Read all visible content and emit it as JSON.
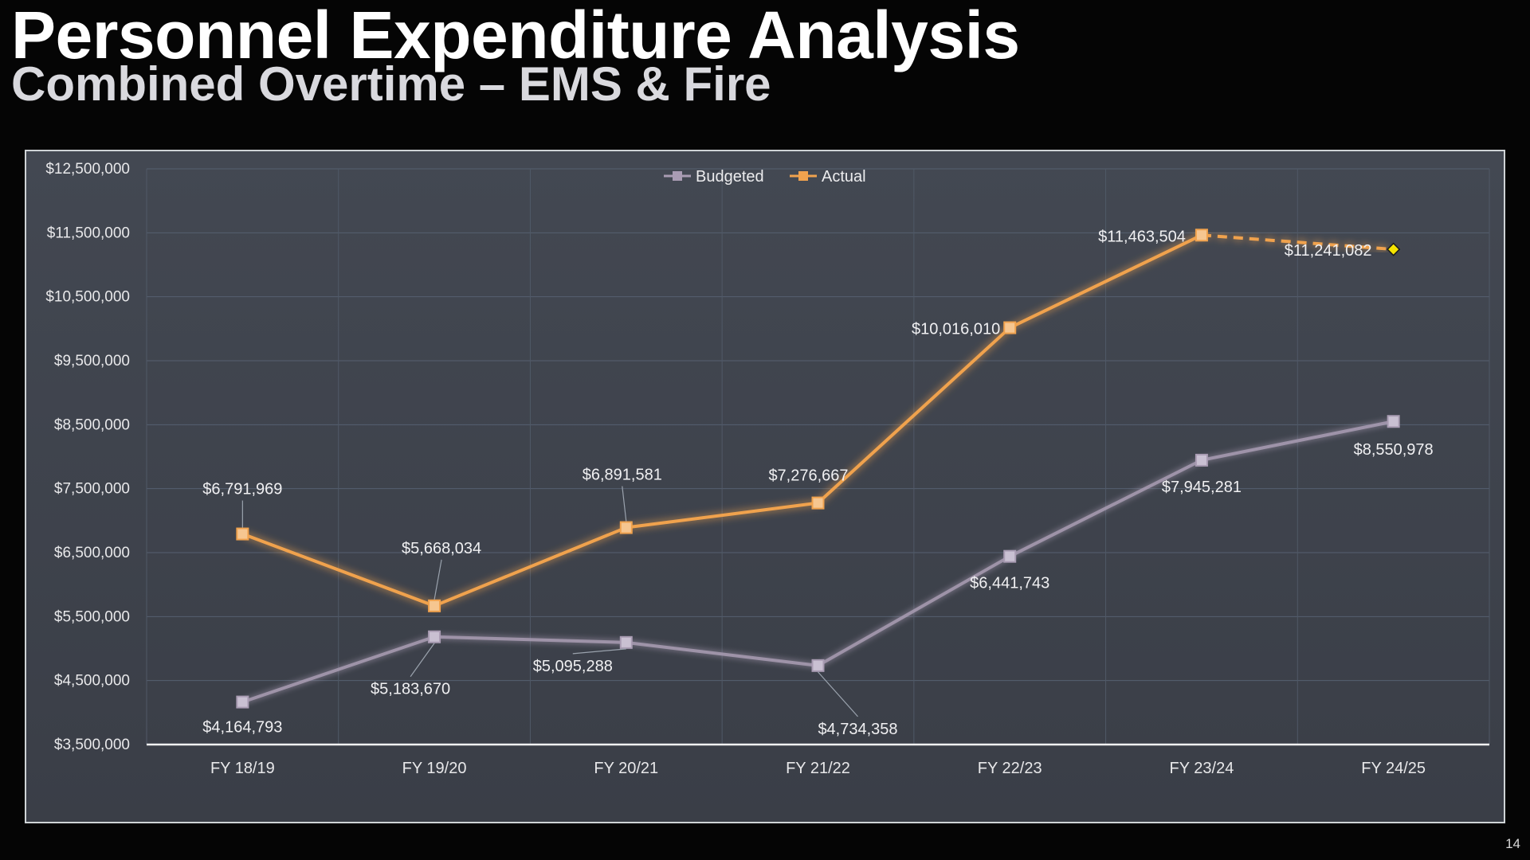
{
  "slide": {
    "title": "Personnel Expenditure Analysis",
    "subtitle": "Combined Overtime – EMS & Fire",
    "page_number": "14"
  },
  "chart_data": {
    "type": "line",
    "categories": [
      "FY 18/19",
      "FY 19/20",
      "FY 20/21",
      "FY 21/22",
      "FY 22/23",
      "FY 23/24",
      "FY 24/25"
    ],
    "ylim": [
      3500000,
      12500000
    ],
    "ytick_step": 1000000,
    "ytick_labels": [
      "$3,500,000",
      "$4,500,000",
      "$5,500,000",
      "$6,500,000",
      "$7,500,000",
      "$8,500,000",
      "$9,500,000",
      "$10,500,000",
      "$11,500,000",
      "$12,500,000"
    ],
    "grid": true,
    "legend_position": "top-center",
    "series": [
      {
        "name": "Budgeted",
        "color": "#a99cb3",
        "values": [
          4164793,
          5183670,
          5095288,
          4734358,
          6441743,
          7945281,
          8550978
        ],
        "labels": [
          "$4,164,793",
          "$5,183,670",
          "$5,095,288",
          "$4,734,358",
          "$6,441,743",
          "$7,945,281",
          "$8,550,978"
        ]
      },
      {
        "name": "Actual",
        "color": "#f0a24e",
        "values": [
          6791969,
          5668034,
          6891581,
          7276667,
          10016010,
          11463504,
          11241082
        ],
        "labels": [
          "$6,791,969",
          "$5,668,034",
          "$6,891,581",
          "$7,276,667",
          "$10,016,010",
          "$11,463,504",
          "$11,241,082"
        ],
        "projected_last_point": true,
        "projected_marker_color": "#f5e400"
      }
    ]
  }
}
